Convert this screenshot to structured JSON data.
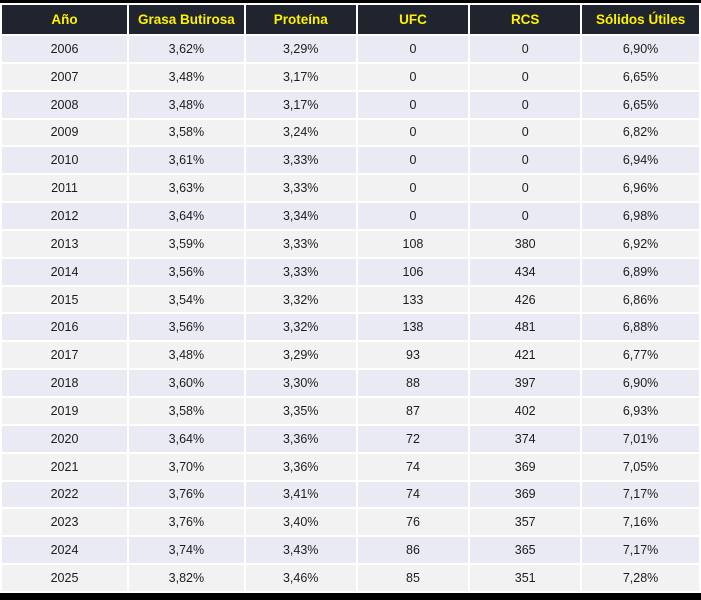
{
  "chart_data": {
    "type": "table",
    "title": "",
    "columns": [
      "Año",
      "Grasa Butirosa",
      "Proteína",
      "UFC",
      "RCS",
      "Sólidos Útiles"
    ],
    "rows": [
      [
        "2006",
        "3,62%",
        "3,29%",
        "0",
        "0",
        "6,90%"
      ],
      [
        "2007",
        "3,48%",
        "3,17%",
        "0",
        "0",
        "6,65%"
      ],
      [
        "2008",
        "3,48%",
        "3,17%",
        "0",
        "0",
        "6,65%"
      ],
      [
        "2009",
        "3,58%",
        "3,24%",
        "0",
        "0",
        "6,82%"
      ],
      [
        "2010",
        "3,61%",
        "3,33%",
        "0",
        "0",
        "6,94%"
      ],
      [
        "2011",
        "3,63%",
        "3,33%",
        "0",
        "0",
        "6,96%"
      ],
      [
        "2012",
        "3,64%",
        "3,34%",
        "0",
        "0",
        "6,98%"
      ],
      [
        "2013",
        "3,59%",
        "3,33%",
        "108",
        "380",
        "6,92%"
      ],
      [
        "2014",
        "3,56%",
        "3,33%",
        "106",
        "434",
        "6,89%"
      ],
      [
        "2015",
        "3,54%",
        "3,32%",
        "133",
        "426",
        "6,86%"
      ],
      [
        "2016",
        "3,56%",
        "3,32%",
        "138",
        "481",
        "6,88%"
      ],
      [
        "2017",
        "3,48%",
        "3,29%",
        "93",
        "421",
        "6,77%"
      ],
      [
        "2018",
        "3,60%",
        "3,30%",
        "88",
        "397",
        "6,90%"
      ],
      [
        "2019",
        "3,58%",
        "3,35%",
        "87",
        "402",
        "6,93%"
      ],
      [
        "2020",
        "3,64%",
        "3,36%",
        "72",
        "374",
        "7,01%"
      ],
      [
        "2021",
        "3,70%",
        "3,36%",
        "74",
        "369",
        "7,05%"
      ],
      [
        "2022",
        "3,76%",
        "3,41%",
        "74",
        "369",
        "7,17%"
      ],
      [
        "2023",
        "3,76%",
        "3,40%",
        "76",
        "357",
        "7,16%"
      ],
      [
        "2024",
        "3,74%",
        "3,43%",
        "86",
        "365",
        "7,17%"
      ],
      [
        "2025",
        "3,82%",
        "3,46%",
        "85",
        "351",
        "7,28%"
      ]
    ],
    "layout_hints": {
      "header_style": "dark band with yellow bold labels",
      "row_striping": "alternating lavender and light gray starting lavender",
      "cell_alignment": "center",
      "grid": "white gaps between cells, black bars at top and bottom"
    }
  },
  "colors": {
    "header_bg": "#20242E",
    "header_text": "#FFF100",
    "row_alt_lavender": "#E9EAF3",
    "row_alt_gray": "#F2F2F2",
    "frame_bar": "#000000",
    "body_text": "#1D1D1D"
  }
}
